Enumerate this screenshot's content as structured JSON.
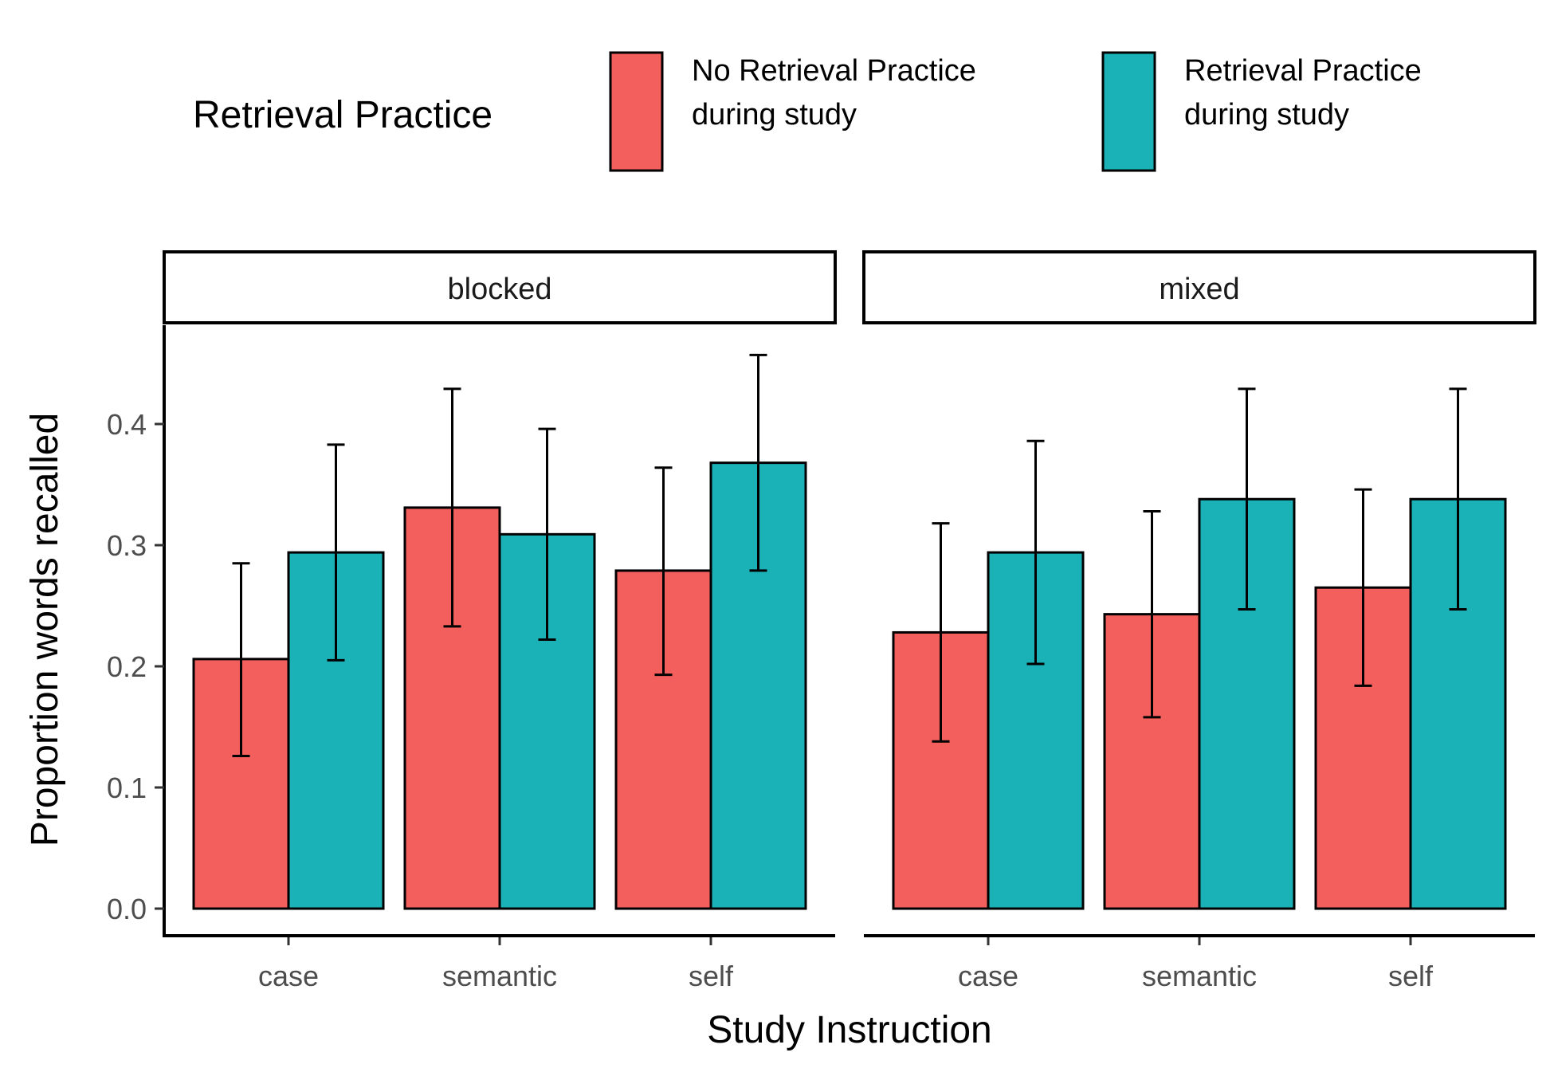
{
  "chart_data": {
    "type": "bar",
    "xlabel": "Study Instruction",
    "ylabel": "Proportion words recalled",
    "ylim": [
      0,
      0.47
    ],
    "yticks": [
      "0.0",
      "0.1",
      "0.2",
      "0.3",
      "0.4"
    ],
    "legend": {
      "title": "Retrieval Practice",
      "position": "top",
      "entries": [
        {
          "lines": [
            "No Retrieval Practice",
            " during study"
          ],
          "color": "#f25f5c"
        },
        {
          "lines": [
            "Retrieval Practice",
            " during study"
          ],
          "color": "#1ab2b7"
        }
      ]
    },
    "categories": [
      "case",
      "semantic",
      "self"
    ],
    "panels": [
      {
        "label": "blocked",
        "series": [
          {
            "name": "No Retrieval Practice during study",
            "values": [
              0.206,
              0.331,
              0.279
            ],
            "err_low": [
              0.126,
              0.233,
              0.193
            ],
            "err_high": [
              0.285,
              0.429,
              0.364
            ]
          },
          {
            "name": "Retrieval Practice during study",
            "values": [
              0.294,
              0.309,
              0.368
            ],
            "err_low": [
              0.205,
              0.222,
              0.279
            ],
            "err_high": [
              0.383,
              0.396,
              0.457
            ]
          }
        ]
      },
      {
        "label": "mixed",
        "series": [
          {
            "name": "No Retrieval Practice during study",
            "values": [
              0.228,
              0.243,
              0.265
            ],
            "err_low": [
              0.138,
              0.158,
              0.184
            ],
            "err_high": [
              0.318,
              0.328,
              0.346
            ]
          },
          {
            "name": "Retrieval Practice during study",
            "values": [
              0.294,
              0.338,
              0.338
            ],
            "err_low": [
              0.202,
              0.247,
              0.247
            ],
            "err_high": [
              0.386,
              0.429,
              0.429
            ]
          }
        ]
      }
    ],
    "grid": false
  }
}
